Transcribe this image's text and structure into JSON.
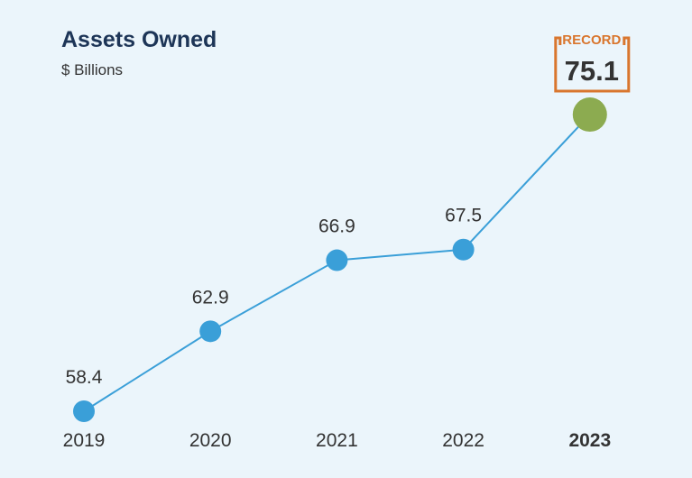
{
  "chart_data": {
    "type": "line",
    "title": "Assets Owned",
    "subtitle": "$ Billions",
    "categories": [
      "2019",
      "2020",
      "2021",
      "2022",
      "2023"
    ],
    "values": [
      58.4,
      62.9,
      66.9,
      67.5,
      75.1
    ],
    "value_labels": [
      "58.4",
      "62.9",
      "66.9",
      "67.5",
      "75.1"
    ],
    "highlight": {
      "category": "2023",
      "label": "RECORD"
    },
    "grid": false,
    "colors": {
      "line": "#3a9fd8",
      "point": "#3a9fd8",
      "highlight_point": "#8cab50",
      "record_box": "#d9762e",
      "title": "#1d3557"
    }
  }
}
